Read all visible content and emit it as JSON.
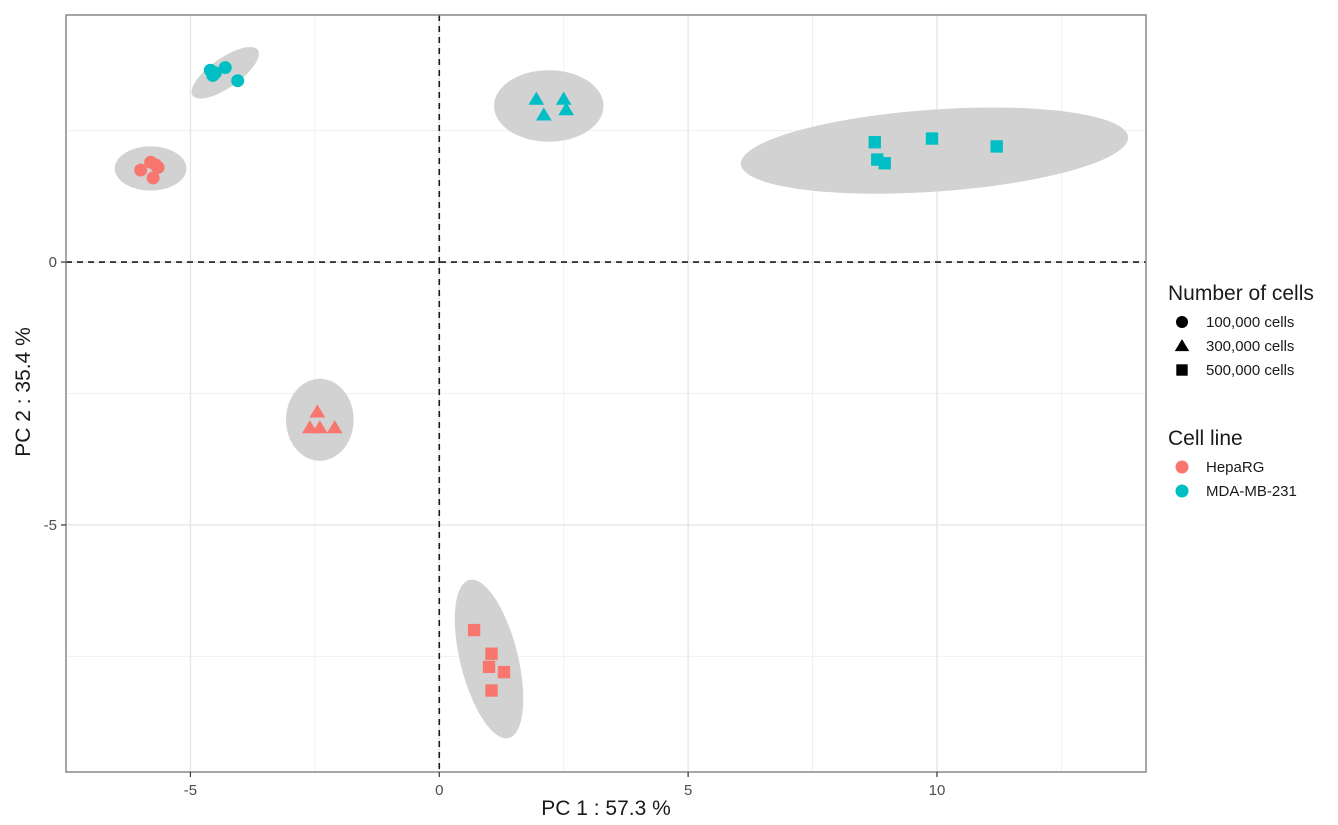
{
  "chart_data": {
    "type": "scatter",
    "xlabel": "PC 1 : 57.3 %",
    "ylabel": "PC 2 : 35.4 %",
    "xlim": [
      -7.5,
      14.2
    ],
    "ylim": [
      -9.7,
      4.7
    ],
    "x_ticks": [
      -5,
      0,
      5,
      10
    ],
    "y_ticks": [
      -5,
      0
    ],
    "x_tick_labels": [
      "-5",
      "0",
      "5",
      "10"
    ],
    "y_tick_labels": [
      "-5",
      "0"
    ],
    "x_minor_gridlines": [
      -2.5,
      2.5,
      7.5,
      12.5
    ],
    "y_minor_gridlines": [
      -7.5,
      -2.5,
      2.5
    ],
    "grid": true,
    "reference_lines": {
      "x": 0,
      "y": 0,
      "style": "dashed"
    },
    "colors": {
      "HepaRG": "#F8766D",
      "MDA-MB-231": "#00BFC4"
    },
    "ellipse_color": "#d2d2d2",
    "series": [
      {
        "cell_line": "HepaRG",
        "cells": "100,000 cells",
        "shape": "circle",
        "points": [
          [
            -6.0,
            1.75
          ],
          [
            -5.8,
            1.9
          ],
          [
            -5.7,
            1.85
          ],
          [
            -5.75,
            1.6
          ],
          [
            -5.65,
            1.8
          ]
        ],
        "ellipse": {
          "center": [
            -5.8,
            1.78
          ],
          "rx": 0.72,
          "ry": 0.42,
          "angle_deg": 0
        }
      },
      {
        "cell_line": "HepaRG",
        "cells": "300,000 cells",
        "shape": "triangle",
        "points": [
          [
            -2.45,
            -2.85
          ],
          [
            -2.6,
            -3.15
          ],
          [
            -2.4,
            -3.15
          ],
          [
            -2.1,
            -3.15
          ]
        ],
        "ellipse": {
          "center": [
            -2.4,
            -3.0
          ],
          "rx": 0.68,
          "ry": 0.78,
          "angle_deg": 0
        }
      },
      {
        "cell_line": "HepaRG",
        "cells": "500,000 cells",
        "shape": "square",
        "points": [
          [
            0.7,
            -7.0
          ],
          [
            1.05,
            -7.45
          ],
          [
            1.0,
            -7.7
          ],
          [
            1.3,
            -7.8
          ],
          [
            1.05,
            -8.15
          ]
        ],
        "ellipse": {
          "center": [
            1.0,
            -7.55
          ],
          "rx": 0.58,
          "ry": 1.55,
          "angle_deg": -14
        }
      },
      {
        "cell_line": "MDA-MB-231",
        "cells": "100,000 cells",
        "shape": "circle",
        "points": [
          [
            -4.6,
            3.65
          ],
          [
            -4.55,
            3.55
          ],
          [
            -4.3,
            3.7
          ],
          [
            -4.05,
            3.45
          ],
          [
            -4.5,
            3.6
          ]
        ],
        "ellipse": {
          "center": [
            -4.3,
            3.6
          ],
          "rx": 0.8,
          "ry": 0.28,
          "angle_deg": -35
        }
      },
      {
        "cell_line": "MDA-MB-231",
        "cells": "300,000 cells",
        "shape": "triangle",
        "points": [
          [
            1.95,
            3.1
          ],
          [
            2.5,
            3.1
          ],
          [
            2.1,
            2.8
          ],
          [
            2.55,
            2.9
          ]
        ],
        "ellipse": {
          "center": [
            2.2,
            2.97
          ],
          "rx": 1.1,
          "ry": 0.68,
          "angle_deg": 0
        }
      },
      {
        "cell_line": "MDA-MB-231",
        "cells": "500,000 cells",
        "shape": "square",
        "points": [
          [
            8.75,
            2.28
          ],
          [
            8.8,
            1.95
          ],
          [
            8.95,
            1.88
          ],
          [
            9.9,
            2.35
          ],
          [
            11.2,
            2.2
          ]
        ],
        "ellipse": {
          "center": [
            9.95,
            2.12
          ],
          "rx": 3.9,
          "ry": 0.78,
          "angle_deg": -4
        }
      }
    ],
    "legends": [
      {
        "title": "Number of cells",
        "items": [
          {
            "label": "100,000 cells",
            "shape": "circle"
          },
          {
            "label": "300,000 cells",
            "shape": "triangle"
          },
          {
            "label": "500,000 cells",
            "shape": "square"
          }
        ]
      },
      {
        "title": "Cell line",
        "items": [
          {
            "label": "HepaRG",
            "color": "#F8766D"
          },
          {
            "label": "MDA-MB-231",
            "color": "#00BFC4"
          }
        ]
      }
    ]
  }
}
